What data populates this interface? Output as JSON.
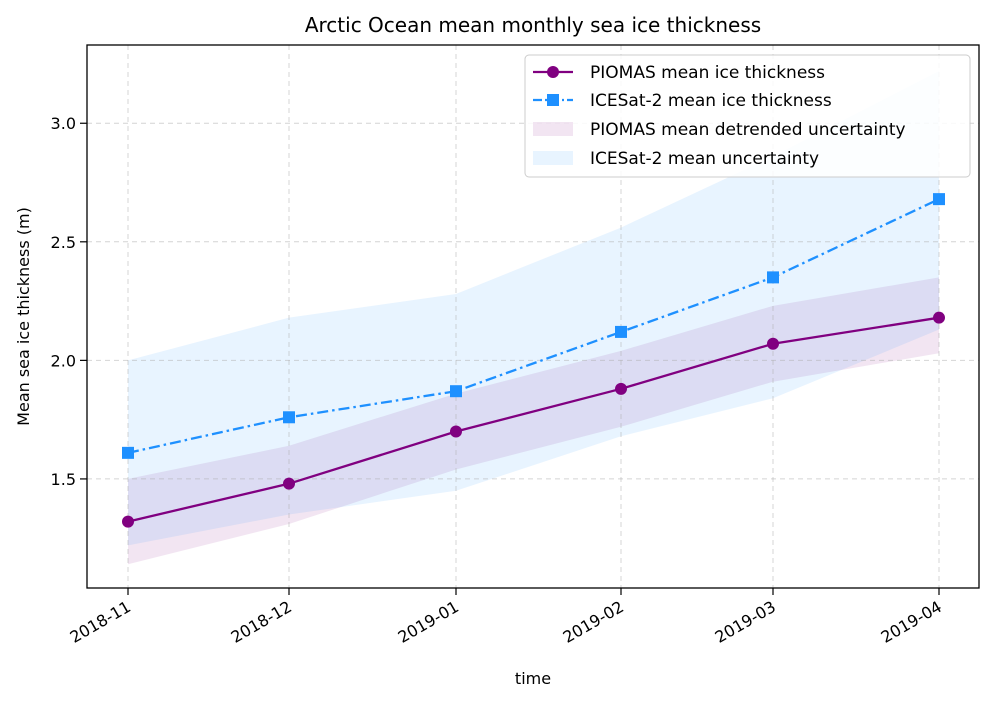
{
  "chart_data": {
    "type": "line",
    "title": "Arctic Ocean mean monthly sea ice thickness",
    "xlabel": "time",
    "ylabel": "Mean sea ice thickness (m)",
    "x": [
      "2018-11",
      "2018-12",
      "2019-01",
      "2019-02",
      "2019-03",
      "2019-04"
    ],
    "ylim": [
      1.04,
      3.33
    ],
    "yticks": [
      "1.5",
      "2.0",
      "2.5",
      "3.0"
    ],
    "grid": true,
    "legend_position": "top-right",
    "series": [
      {
        "name": "PIOMAS mean ice thickness",
        "kind": "line",
        "marker": "circle",
        "linestyle": "solid",
        "color": "#800080",
        "values": [
          1.32,
          1.48,
          1.7,
          1.88,
          2.07,
          2.18
        ]
      },
      {
        "name": "ICESat-2 mean ice thickness",
        "kind": "line",
        "marker": "square",
        "linestyle": "dashdot",
        "color": "#1e90ff",
        "values": [
          1.61,
          1.76,
          1.87,
          2.12,
          2.35,
          2.68
        ]
      },
      {
        "name": "PIOMAS mean detrended uncertainty",
        "kind": "band",
        "color": "#800080",
        "opacity": 0.1,
        "lower": [
          1.14,
          1.31,
          1.54,
          1.72,
          1.91,
          2.03
        ],
        "upper": [
          1.5,
          1.64,
          1.86,
          2.04,
          2.23,
          2.35
        ]
      },
      {
        "name": "ICESat-2 mean uncertainty",
        "kind": "band",
        "color": "#1e90ff",
        "opacity": 0.1,
        "lower": [
          1.22,
          1.35,
          1.45,
          1.68,
          1.84,
          2.13
        ],
        "upper": [
          2.0,
          2.18,
          2.28,
          2.56,
          2.86,
          3.22
        ]
      }
    ]
  }
}
